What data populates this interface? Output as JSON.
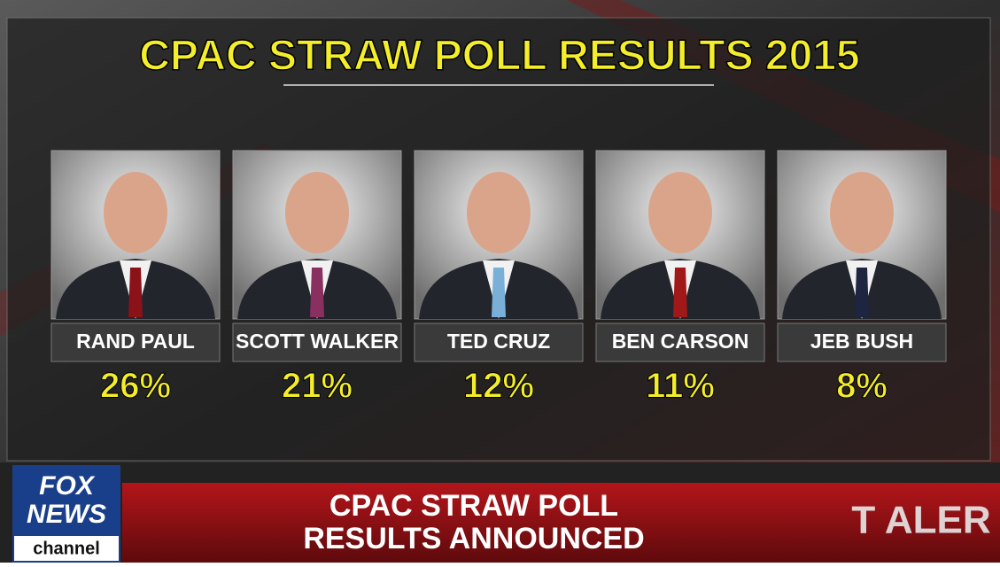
{
  "header": {
    "title": "CPAC STRAW POLL RESULTS 2015"
  },
  "candidates": [
    {
      "name": "RAND PAUL",
      "result": "26%"
    },
    {
      "name": "SCOTT WALKER",
      "result": "21%"
    },
    {
      "name": "TED CRUZ",
      "result": "12%"
    },
    {
      "name": "BEN CARSON",
      "result": "11%"
    },
    {
      "name": "JEB BUSH",
      "result": "8%"
    }
  ],
  "lower_third": {
    "line1": "CPAC STRAW POLL",
    "line2": "RESULTS ANNOUNCED",
    "alert": "T ALER"
  },
  "logo": {
    "top": "FOX",
    "middle": "NEWS",
    "bottom": "channel"
  }
}
